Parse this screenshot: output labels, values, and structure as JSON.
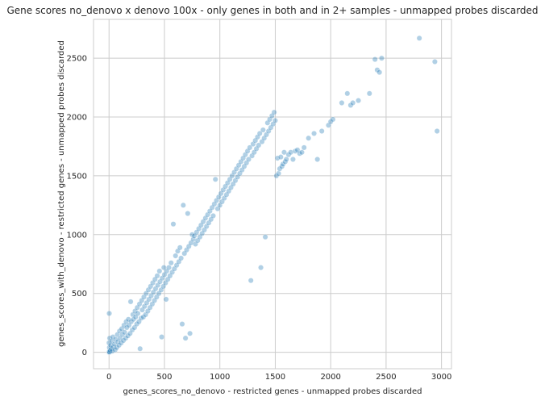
{
  "chart_data": {
    "type": "scatter",
    "title": "Gene scores no_denovo x denovo 100x - only genes in both and in 2+ samples - unmapped probes discarded",
    "xlabel": "genes_scores_no_denovo - restricted genes - unmapped probes discarded",
    "ylabel": "genes_scores_with_denovo - restricted genes - unmapped probes discarded",
    "xlim": [
      -140,
      3090
    ],
    "ylim": [
      -140,
      2830
    ],
    "xticks": [
      0,
      500,
      1000,
      1500,
      2000,
      2500,
      3000
    ],
    "yticks": [
      0,
      500,
      1000,
      1500,
      2000,
      2500
    ],
    "grid": true,
    "point_color": "#1f77b4",
    "points": [
      [
        0,
        0
      ],
      [
        2,
        5
      ],
      [
        5,
        2
      ],
      [
        3,
        40
      ],
      [
        0,
        80
      ],
      [
        6,
        120
      ],
      [
        2,
        330
      ],
      [
        10,
        15
      ],
      [
        20,
        30
      ],
      [
        15,
        60
      ],
      [
        25,
        95
      ],
      [
        30,
        10
      ],
      [
        40,
        45
      ],
      [
        35,
        130
      ],
      [
        50,
        70
      ],
      [
        55,
        20
      ],
      [
        60,
        110
      ],
      [
        70,
        40
      ],
      [
        75,
        150
      ],
      [
        80,
        90
      ],
      [
        90,
        60
      ],
      [
        95,
        180
      ],
      [
        100,
        120
      ],
      [
        110,
        80
      ],
      [
        115,
        200
      ],
      [
        120,
        150
      ],
      [
        130,
        100
      ],
      [
        135,
        230
      ],
      [
        140,
        170
      ],
      [
        150,
        120
      ],
      [
        155,
        260
      ],
      [
        160,
        210
      ],
      [
        170,
        140
      ],
      [
        175,
        280
      ],
      [
        180,
        230
      ],
      [
        190,
        160
      ],
      [
        195,
        430
      ],
      [
        200,
        260
      ],
      [
        210,
        190
      ],
      [
        215,
        320
      ],
      [
        220,
        280
      ],
      [
        230,
        210
      ],
      [
        235,
        350
      ],
      [
        240,
        300
      ],
      [
        250,
        240
      ],
      [
        255,
        380
      ],
      [
        260,
        330
      ],
      [
        270,
        260
      ],
      [
        275,
        410
      ],
      [
        280,
        30
      ],
      [
        290,
        290
      ],
      [
        295,
        440
      ],
      [
        300,
        360
      ],
      [
        310,
        300
      ],
      [
        315,
        470
      ],
      [
        320,
        390
      ],
      [
        330,
        320
      ],
      [
        335,
        500
      ],
      [
        340,
        420
      ],
      [
        350,
        350
      ],
      [
        355,
        530
      ],
      [
        360,
        450
      ],
      [
        370,
        380
      ],
      [
        375,
        560
      ],
      [
        380,
        480
      ],
      [
        390,
        410
      ],
      [
        395,
        590
      ],
      [
        400,
        510
      ],
      [
        410,
        440
      ],
      [
        415,
        620
      ],
      [
        420,
        540
      ],
      [
        430,
        470
      ],
      [
        435,
        650
      ],
      [
        440,
        570
      ],
      [
        450,
        500
      ],
      [
        455,
        690
      ],
      [
        460,
        600
      ],
      [
        470,
        530
      ],
      [
        475,
        130
      ],
      [
        480,
        630
      ],
      [
        490,
        560
      ],
      [
        495,
        720
      ],
      [
        500,
        660
      ],
      [
        510,
        590
      ],
      [
        515,
        450
      ],
      [
        520,
        690
      ],
      [
        530,
        620
      ],
      [
        540,
        720
      ],
      [
        550,
        650
      ],
      [
        560,
        760
      ],
      [
        570,
        680
      ],
      [
        580,
        1090
      ],
      [
        590,
        710
      ],
      [
        600,
        820
      ],
      [
        610,
        740
      ],
      [
        620,
        860
      ],
      [
        630,
        770
      ],
      [
        640,
        890
      ],
      [
        650,
        800
      ],
      [
        660,
        240
      ],
      [
        670,
        1250
      ],
      [
        680,
        840
      ],
      [
        690,
        120
      ],
      [
        700,
        870
      ],
      [
        710,
        1180
      ],
      [
        720,
        900
      ],
      [
        730,
        160
      ],
      [
        740,
        930
      ],
      [
        750,
        1000
      ],
      [
        760,
        960
      ],
      [
        770,
        990
      ],
      [
        780,
        920
      ],
      [
        790,
        1020
      ],
      [
        800,
        950
      ],
      [
        810,
        1050
      ],
      [
        820,
        980
      ],
      [
        830,
        1080
      ],
      [
        840,
        1010
      ],
      [
        850,
        1110
      ],
      [
        860,
        1040
      ],
      [
        870,
        1140
      ],
      [
        880,
        1070
      ],
      [
        890,
        1170
      ],
      [
        900,
        1100
      ],
      [
        910,
        1200
      ],
      [
        920,
        1130
      ],
      [
        930,
        1230
      ],
      [
        940,
        1160
      ],
      [
        950,
        1260
      ],
      [
        960,
        1470
      ],
      [
        970,
        1290
      ],
      [
        980,
        1220
      ],
      [
        990,
        1320
      ],
      [
        1000,
        1250
      ],
      [
        1010,
        1350
      ],
      [
        1020,
        1280
      ],
      [
        1030,
        1380
      ],
      [
        1040,
        1310
      ],
      [
        1050,
        1410
      ],
      [
        1060,
        1340
      ],
      [
        1070,
        1440
      ],
      [
        1080,
        1370
      ],
      [
        1090,
        1470
      ],
      [
        1100,
        1400
      ],
      [
        1110,
        1500
      ],
      [
        1120,
        1430
      ],
      [
        1130,
        1530
      ],
      [
        1140,
        1460
      ],
      [
        1150,
        1560
      ],
      [
        1160,
        1490
      ],
      [
        1170,
        1590
      ],
      [
        1180,
        1520
      ],
      [
        1190,
        1620
      ],
      [
        1200,
        1550
      ],
      [
        1210,
        1650
      ],
      [
        1220,
        1580
      ],
      [
        1230,
        1680
      ],
      [
        1240,
        1610
      ],
      [
        1250,
        1710
      ],
      [
        1260,
        1640
      ],
      [
        1270,
        1740
      ],
      [
        1280,
        610
      ],
      [
        1290,
        1670
      ],
      [
        1300,
        1770
      ],
      [
        1310,
        1700
      ],
      [
        1320,
        1800
      ],
      [
        1330,
        1730
      ],
      [
        1340,
        1830
      ],
      [
        1350,
        1760
      ],
      [
        1360,
        1860
      ],
      [
        1370,
        720
      ],
      [
        1380,
        1790
      ],
      [
        1390,
        1890
      ],
      [
        1400,
        1820
      ],
      [
        1410,
        980
      ],
      [
        1420,
        1850
      ],
      [
        1430,
        1950
      ],
      [
        1440,
        1880
      ],
      [
        1450,
        1980
      ],
      [
        1460,
        1910
      ],
      [
        1470,
        2010
      ],
      [
        1480,
        1940
      ],
      [
        1490,
        2040
      ],
      [
        1500,
        1970
      ],
      [
        1510,
        1500
      ],
      [
        1520,
        1650
      ],
      [
        1530,
        1520
      ],
      [
        1540,
        1560
      ],
      [
        1550,
        1660
      ],
      [
        1560,
        1580
      ],
      [
        1570,
        1600
      ],
      [
        1580,
        1700
      ],
      [
        1590,
        1620
      ],
      [
        1600,
        1640
      ],
      [
        1620,
        1680
      ],
      [
        1640,
        1700
      ],
      [
        1660,
        1640
      ],
      [
        1680,
        1710
      ],
      [
        1700,
        1720
      ],
      [
        1720,
        1690
      ],
      [
        1740,
        1700
      ],
      [
        1760,
        1740
      ],
      [
        1800,
        1820
      ],
      [
        1850,
        1860
      ],
      [
        1880,
        1640
      ],
      [
        1920,
        1880
      ],
      [
        1980,
        1930
      ],
      [
        2000,
        1960
      ],
      [
        2020,
        1980
      ],
      [
        2100,
        2120
      ],
      [
        2150,
        2200
      ],
      [
        2180,
        2100
      ],
      [
        2200,
        2120
      ],
      [
        2250,
        2140
      ],
      [
        2350,
        2200
      ],
      [
        2400,
        2490
      ],
      [
        2420,
        2400
      ],
      [
        2440,
        2380
      ],
      [
        2460,
        2500
      ],
      [
        2800,
        2670
      ],
      [
        2940,
        2470
      ],
      [
        2960,
        1880
      ]
    ]
  }
}
